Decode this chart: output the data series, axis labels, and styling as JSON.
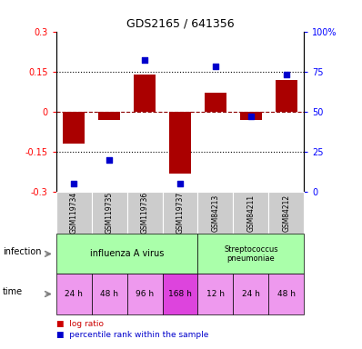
{
  "title": "GDS2165 / 641356",
  "samples": [
    "GSM119734",
    "GSM119735",
    "GSM119736",
    "GSM119737",
    "GSM84213",
    "GSM84211",
    "GSM84212"
  ],
  "log_ratio": [
    -0.12,
    -0.03,
    0.14,
    -0.23,
    0.07,
    -0.03,
    0.12
  ],
  "percentile_rank": [
    5,
    20,
    82,
    5,
    78,
    47,
    73
  ],
  "time_labels": [
    "24 h",
    "48 h",
    "96 h",
    "168 h",
    "12 h",
    "24 h",
    "48 h"
  ],
  "time_colors": [
    "#ee99ee",
    "#ee99ee",
    "#ee99ee",
    "#dd44dd",
    "#ee99ee",
    "#ee99ee",
    "#ee99ee"
  ],
  "infection_label1": "influenza A virus",
  "infection_label2": "Streptococcus\npneumoniae",
  "infection_color": "#aaffaa",
  "bar_color": "#aa0000",
  "dot_color": "#0000cc",
  "ylim_left": [
    -0.3,
    0.3
  ],
  "ylim_right": [
    0,
    100
  ],
  "yticks_left": [
    -0.3,
    -0.15,
    0,
    0.15,
    0.3
  ],
  "yticks_right": [
    0,
    25,
    50,
    75,
    100
  ],
  "ytick_labels_left": [
    "-0.3",
    "-0.15",
    "0",
    "0.15",
    "0.3"
  ],
  "ytick_labels_right": [
    "0",
    "25",
    "50",
    "75",
    "100%"
  ],
  "hlines": [
    -0.15,
    0,
    0.15
  ],
  "hline_styles": [
    "dotted",
    "dashed",
    "dotted"
  ],
  "hline_colors": [
    "black",
    "darkred",
    "black"
  ],
  "legend_items": [
    {
      "label": "log ratio",
      "color": "#cc0000"
    },
    {
      "label": "percentile rank within the sample",
      "color": "#0000cc"
    }
  ],
  "bar_width": 0.6,
  "sample_bg": "#cccccc",
  "title_fontsize": 9,
  "tick_fontsize": 7,
  "label_fontsize": 7,
  "sample_fontsize": 5.5,
  "time_fontsize": 6.5,
  "legend_fontsize": 6.5
}
